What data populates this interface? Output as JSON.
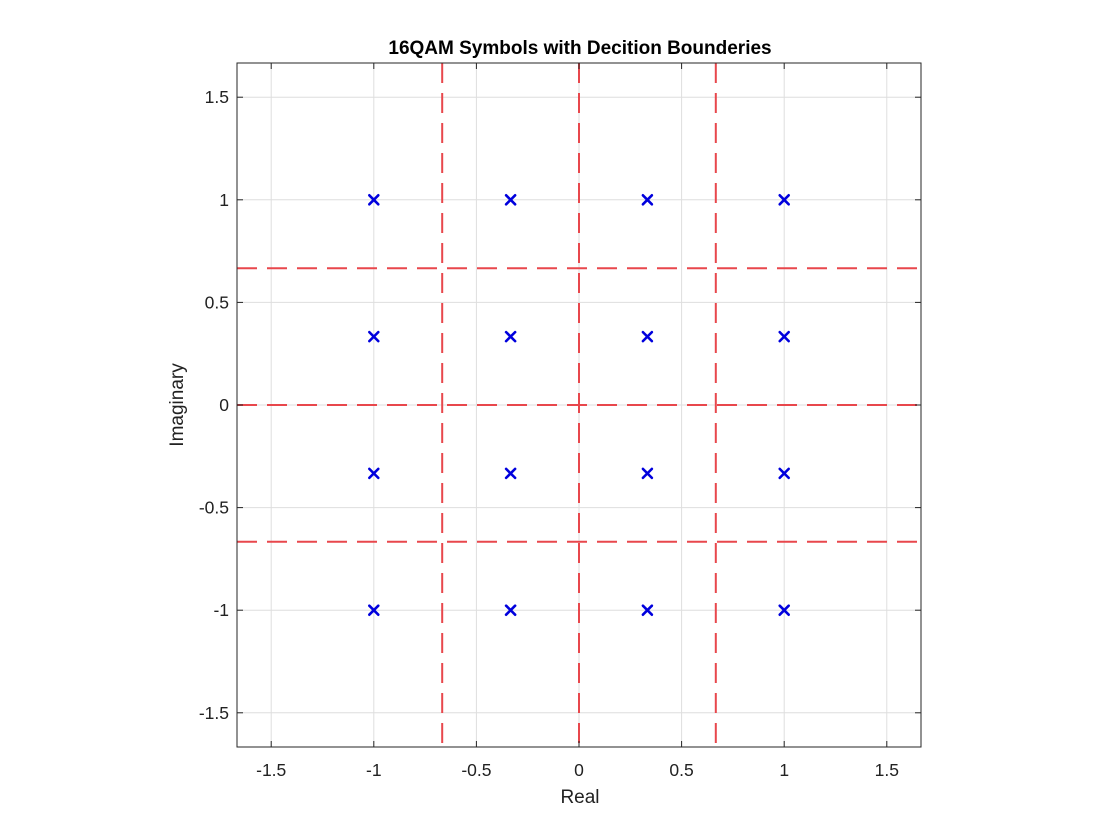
{
  "chart_data": {
    "type": "scatter",
    "title": "16QAM Symbols with Decition Bounderies",
    "xlabel": "Real",
    "ylabel": "Imaginary",
    "xlim": [
      -1.6667,
      1.6667
    ],
    "ylim": [
      -1.6667,
      1.6667
    ],
    "x_ticks": [
      -1.5,
      -1,
      -0.5,
      0,
      0.5,
      1,
      1.5
    ],
    "x_tick_labels": [
      "-1.5",
      "-1",
      "-0.5",
      "0",
      "0.5",
      "1",
      "1.5"
    ],
    "y_ticks": [
      -1.5,
      -1,
      -0.5,
      0,
      0.5,
      1,
      1.5
    ],
    "y_tick_labels": [
      "-1.5",
      "-1",
      "-0.5",
      "0",
      "0.5",
      "1",
      "1.5"
    ],
    "grid": true,
    "legend": "none",
    "series": [
      {
        "marker": "x",
        "color": "#0000dd",
        "points": [
          [
            -1,
            1
          ],
          [
            -0.3333,
            1
          ],
          [
            0.3333,
            1
          ],
          [
            1,
            1
          ],
          [
            -1,
            0.3333
          ],
          [
            -0.3333,
            0.3333
          ],
          [
            0.3333,
            0.3333
          ],
          [
            1,
            0.3333
          ],
          [
            -1,
            -0.3333
          ],
          [
            -0.3333,
            -0.3333
          ],
          [
            0.3333,
            -0.3333
          ],
          [
            1,
            -0.3333
          ],
          [
            -1,
            -1
          ],
          [
            -0.3333,
            -1
          ],
          [
            0.3333,
            -1
          ],
          [
            1,
            -1
          ]
        ]
      }
    ],
    "decision_boundaries": {
      "color": "#e8474c",
      "style": "dashed",
      "vertical": [
        -0.6667,
        0,
        0.6667
      ],
      "horizontal": [
        -0.6667,
        0,
        0.6667
      ]
    }
  }
}
